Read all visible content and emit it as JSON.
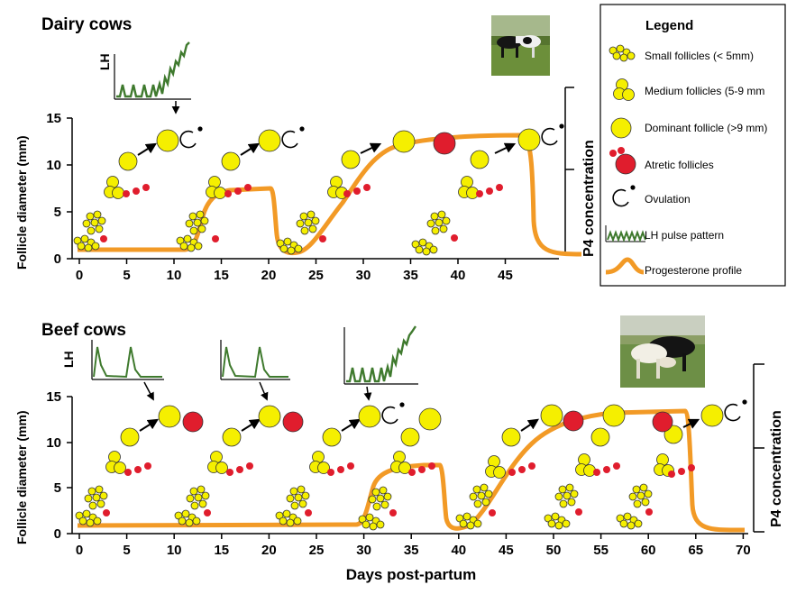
{
  "dairy": {
    "title": "Dairy cows",
    "ylabel": "Follicle diameter (mm)",
    "yticks": [
      "0",
      "5",
      "10",
      "15"
    ],
    "xticks": [
      "0",
      "5",
      "10",
      "15",
      "20",
      "25",
      "30",
      "35",
      "40",
      "45"
    ],
    "p4_label": "P4  concentration",
    "lh_label": "LH"
  },
  "beef": {
    "title": "Beef cows",
    "ylabel": "Follicle diameter (mm)",
    "yticks": [
      "0",
      "5",
      "10",
      "15"
    ],
    "xticks": [
      "0",
      "5",
      "10",
      "15",
      "20",
      "25",
      "30",
      "35",
      "40",
      "45",
      "50",
      "55",
      "60",
      "65",
      "70"
    ],
    "p4_label": "P4  concentration",
    "lh_label": "LH",
    "xlabel": "Days post-partum"
  },
  "legend": {
    "title": "Legend",
    "items": [
      {
        "label": "Small follicles (< 5mm)",
        "icon": "small-follicles-icon"
      },
      {
        "label": "Medium follicles (5-9 mm",
        "icon": "medium-follicles-icon"
      },
      {
        "label": "Dominant follicle (>9 mm)",
        "icon": "dominant-follicle-icon"
      },
      {
        "label": "Atretic follicles",
        "icon": "atretic-follicles-icon"
      },
      {
        "label": "Ovulation",
        "icon": "ovulation-icon"
      },
      {
        "label": "LH pulse pattern",
        "icon": "lh-pulse-icon"
      },
      {
        "label": "Progesterone profile",
        "icon": "progesterone-icon"
      }
    ]
  },
  "colors": {
    "follicle": "#f5ef00",
    "atretic": "#e01d2d",
    "progesterone": "#f29a26",
    "lh": "#3f7a2e",
    "photo_grass": "#5f8f3a"
  }
}
